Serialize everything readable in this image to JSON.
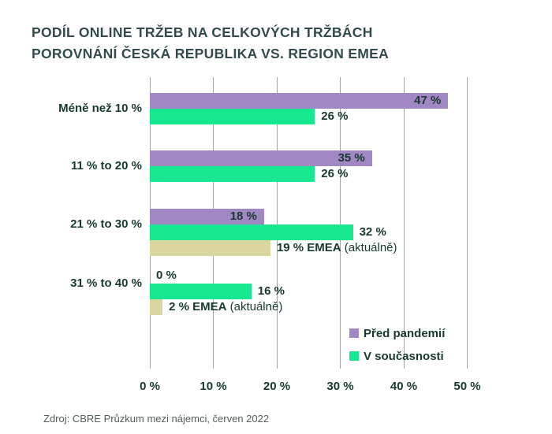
{
  "title": {
    "line1": "PODÍL ONLINE TRŽEB NA CELKOVÝCH TRŽBÁCH",
    "line2": "POROVNÁNÍ ČESKÁ REPUBLIKA VS. REGION EMEA"
  },
  "source": "Zdroj: CBRE Průzkum mezi nájemci, červen 2022",
  "colors": {
    "purple": "#A287C5",
    "green": "#17E88F",
    "beige": "#DBD5A0",
    "title_text": "#334A4C",
    "label_text": "#17392E",
    "source_text": "#51605D",
    "gridline": "#A3A3A3",
    "background": "#FFFFFF"
  },
  "legend": {
    "items": [
      {
        "label": "Před pandemií",
        "color_key": "purple"
      },
      {
        "label": "V současnosti",
        "color_key": "green"
      }
    ]
  },
  "chart_data": {
    "type": "bar",
    "orientation": "horizontal",
    "title": "PODÍL ONLINE TRŽEB NA CELKOVÝCH TRŽBÁCH POROVNÁNÍ ČESKÁ REPUBLIKA VS. REGION EMEA",
    "xlim": [
      0,
      50
    ],
    "grid": true,
    "legend_position": "bottom-right",
    "x_ticks": [
      {
        "value": 0,
        "label": "0 %"
      },
      {
        "value": 10,
        "label": "10 %"
      },
      {
        "value": 20,
        "label": "20 %"
      },
      {
        "value": 30,
        "label": "30 %"
      },
      {
        "value": 40,
        "label": "40 %"
      },
      {
        "value": 50,
        "label": "50 %"
      }
    ],
    "categories": [
      "Méně než 10 %",
      "11 % to 20 %",
      "21 % to 30 %",
      "31 % to 40 %"
    ],
    "series": [
      {
        "name": "Před pandemií",
        "color_key": "purple",
        "values": [
          47,
          35,
          18,
          0
        ]
      },
      {
        "name": "V současnosti",
        "color_key": "green",
        "values": [
          26,
          26,
          32,
          16
        ]
      },
      {
        "name": "EMEA (aktuálně)",
        "color_key": "beige",
        "values": [
          null,
          null,
          19,
          2
        ]
      }
    ],
    "groups": [
      {
        "category": "Méně než 10 %",
        "bars": [
          {
            "series": "Před pandemií",
            "color_key": "purple",
            "value": 47,
            "label": "47 %",
            "label_pos": "inside"
          },
          {
            "series": "V současnosti",
            "color_key": "green",
            "value": 26,
            "label": "26 %",
            "label_pos": "outside"
          }
        ]
      },
      {
        "category": "11 % to 20 %",
        "bars": [
          {
            "series": "Před pandemií",
            "color_key": "purple",
            "value": 35,
            "label": "35 %",
            "label_pos": "inside"
          },
          {
            "series": "V současnosti",
            "color_key": "green",
            "value": 26,
            "label": "26 %",
            "label_pos": "outside"
          }
        ]
      },
      {
        "category": "21 % to 30 %",
        "bars": [
          {
            "series": "Před pandemií",
            "color_key": "purple",
            "value": 18,
            "label": "18 %",
            "label_pos": "inside"
          },
          {
            "series": "V současnosti",
            "color_key": "green",
            "value": 32,
            "label": "32 %",
            "label_pos": "outside"
          },
          {
            "series": "EMEA (aktuálně)",
            "color_key": "beige",
            "value": 19,
            "label": "19 % EMEA",
            "label_suffix": "(aktuálně)",
            "label_pos": "outside"
          }
        ]
      },
      {
        "category": "31 % to 40 %",
        "bars": [
          {
            "series": "Před pandemií",
            "color_key": "purple",
            "value": 0,
            "label": "0 %",
            "label_pos": "outside"
          },
          {
            "series": "V současnosti",
            "color_key": "green",
            "value": 16,
            "label": "16 %",
            "label_pos": "outside"
          },
          {
            "series": "EMEA (aktuálně)",
            "color_key": "beige",
            "value": 2,
            "label": "2 % EMEA",
            "label_suffix": "(aktuálně)",
            "label_pos": "outside"
          }
        ]
      }
    ]
  }
}
